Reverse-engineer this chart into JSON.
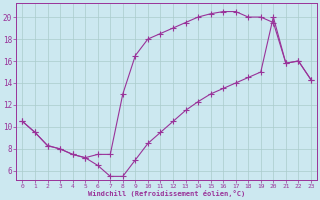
{
  "xlabel": "Windchill (Refroidissement éolien,°C)",
  "bg_color": "#cce8f0",
  "grid_color": "#aacccc",
  "line_color": "#993399",
  "xlim": [
    -0.5,
    23.5
  ],
  "ylim": [
    5.2,
    21.3
  ],
  "xticks": [
    0,
    1,
    2,
    3,
    4,
    5,
    6,
    7,
    8,
    9,
    10,
    11,
    12,
    13,
    14,
    15,
    16,
    17,
    18,
    19,
    20,
    21,
    22,
    23
  ],
  "yticks": [
    6,
    8,
    10,
    12,
    14,
    16,
    18,
    20
  ],
  "line1_x": [
    0,
    1,
    2,
    3,
    4,
    5,
    6,
    7,
    8,
    9,
    10,
    11,
    12,
    13,
    14,
    15,
    16,
    17,
    18,
    19,
    20,
    21,
    22,
    23
  ],
  "line1_y": [
    10.5,
    9.5,
    8.3,
    8.0,
    7.5,
    7.2,
    7.5,
    7.5,
    13.0,
    16.5,
    18.0,
    18.5,
    19.0,
    19.5,
    20.0,
    20.3,
    20.5,
    20.5,
    20.0,
    20.0,
    19.5,
    15.8,
    16.0,
    14.3
  ],
  "line2_x": [
    0,
    1,
    2,
    3,
    4,
    5,
    6,
    7,
    8,
    9,
    10,
    11,
    12,
    13,
    14,
    15,
    16,
    17,
    18,
    19,
    20,
    21,
    22,
    23
  ],
  "line2_y": [
    10.5,
    9.5,
    8.3,
    8.0,
    7.5,
    7.2,
    6.5,
    5.5,
    5.5,
    7.0,
    8.5,
    9.5,
    10.5,
    11.5,
    12.3,
    13.0,
    13.5,
    14.0,
    14.5,
    15.0,
    20.0,
    15.8,
    16.0,
    14.3
  ]
}
